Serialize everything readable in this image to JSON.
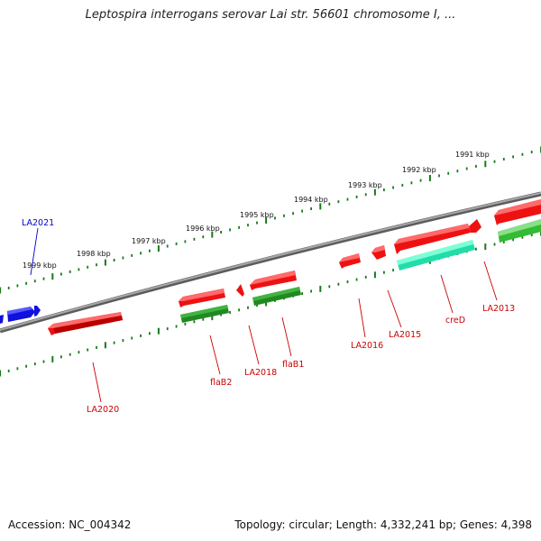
{
  "header": {
    "title": "Leptospira interrogans serovar Lai str. 56601 chromosome I, ..."
  },
  "footer": {
    "accession": "Accession: NC_004342",
    "summary": "Topology: circular; Length: 4,332,241 bp; Genes: 4,398"
  },
  "colors": {
    "backbone": "#8a8a8a",
    "tick": "#1a7a1a",
    "label_red": "#cc0000",
    "label_blue": "#0000cc",
    "gene_red": "#ee1111",
    "gene_blue": "#1111dd",
    "gene_darkgreen": "#228822",
    "gene_green": "#33bb33",
    "gene_teal": "#22ddaa"
  },
  "ruler": {
    "labels": [
      "1999 kbp",
      "1998 kbp",
      "1997 kbp",
      "1996 kbp",
      "1995 kbp",
      "1994 kbp",
      "1993 kbp",
      "1992 kbp",
      "1991 kbp"
    ]
  },
  "genes": [
    {
      "name": "LA2021",
      "color": "blue"
    },
    {
      "name": "LA2020",
      "color": "red"
    },
    {
      "name": "flaB2",
      "color": "red"
    },
    {
      "name": "LA2018",
      "color": "red"
    },
    {
      "name": "flaB1",
      "color": "red"
    },
    {
      "name": "LA2016",
      "color": "red"
    },
    {
      "name": "LA2015",
      "color": "red"
    },
    {
      "name": "creD",
      "color": "red"
    },
    {
      "name": "LA2013",
      "color": "red"
    }
  ]
}
